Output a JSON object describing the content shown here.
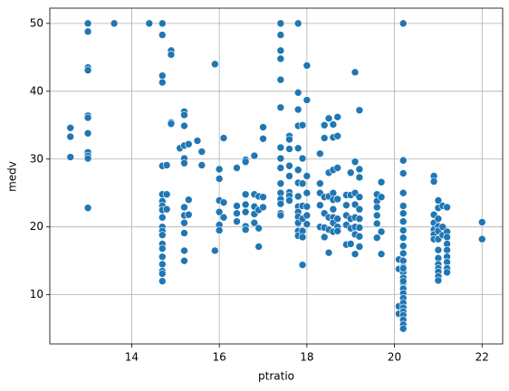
{
  "chart_data": {
    "type": "scatter",
    "xlabel": "ptratio",
    "ylabel": "medv",
    "color": "#1f77b4",
    "grid": true,
    "xlim": [
      12.13,
      22.47
    ],
    "ylim": [
      2.75,
      52.25
    ],
    "xticks": [
      14,
      16,
      18,
      20,
      22
    ],
    "yticks": [
      10,
      20,
      30,
      40,
      50
    ],
    "x": [
      12.6,
      12.6,
      12.6,
      13.0,
      13.0,
      13.0,
      13.0,
      13.0,
      13.0,
      13.0,
      13.0,
      13.0,
      13.0,
      13.0,
      13.6,
      14.4,
      14.7,
      14.7,
      14.7,
      14.7,
      14.7,
      14.7,
      14.7,
      14.7,
      14.7,
      14.7,
      14.7,
      14.7,
      14.7,
      14.7,
      14.7,
      14.7,
      14.7,
      14.7,
      14.7,
      14.7,
      14.8,
      14.8,
      14.8,
      14.9,
      14.9,
      14.9,
      14.9,
      15.1,
      15.2,
      15.2,
      15.2,
      15.2,
      15.2,
      15.2,
      15.2,
      15.2,
      15.2,
      15.2,
      15.2,
      15.2,
      15.3,
      15.3,
      15.3,
      15.5,
      15.6,
      15.6,
      15.9,
      15.9,
      16.0,
      16.0,
      16.0,
      16.0,
      16.0,
      16.0,
      16.1,
      16.1,
      16.1,
      16.4,
      16.4,
      16.4,
      16.4,
      16.6,
      16.6,
      16.6,
      16.6,
      16.6,
      16.6,
      16.6,
      16.8,
      16.8,
      16.8,
      16.8,
      16.8,
      16.9,
      16.9,
      16.9,
      16.9,
      17.0,
      17.0,
      17.0,
      17.0,
      17.4,
      17.4,
      17.4,
      17.4,
      17.4,
      17.4,
      17.4,
      17.4,
      17.4,
      17.4,
      17.4,
      17.4,
      17.4,
      17.4,
      17.4,
      17.6,
      17.6,
      17.6,
      17.6,
      17.6,
      17.6,
      17.6,
      17.6,
      17.8,
      17.8,
      17.8,
      17.8,
      17.8,
      17.8,
      17.8,
      17.8,
      17.8,
      17.8,
      17.8,
      17.8,
      17.8,
      17.8,
      17.9,
      17.9,
      17.9,
      17.9,
      17.9,
      17.9,
      17.9,
      17.9,
      18.0,
      18.0,
      18.0,
      18.0,
      18.0,
      18.0,
      18.0,
      18.3,
      18.3,
      18.3,
      18.3,
      18.3,
      18.4,
      18.4,
      18.4,
      18.4,
      18.4,
      18.4,
      18.5,
      18.5,
      18.5,
      18.5,
      18.5,
      18.5,
      18.6,
      18.6,
      18.6,
      18.6,
      18.6,
      18.6,
      18.6,
      18.6,
      18.6,
      18.7,
      18.7,
      18.7,
      18.7,
      18.7,
      18.7,
      18.7,
      18.9,
      18.9,
      18.9,
      18.9,
      18.9,
      19.0,
      19.0,
      19.0,
      19.0,
      19.0,
      19.1,
      19.1,
      19.1,
      19.1,
      19.1,
      19.1,
      19.1,
      19.1,
      19.2,
      19.2,
      19.2,
      19.2,
      19.2,
      19.2,
      19.2,
      19.2,
      19.2,
      19.6,
      19.6,
      19.6,
      19.6,
      19.6,
      19.6,
      19.7,
      19.7,
      19.7,
      19.7,
      20.1,
      20.1,
      20.1,
      20.1,
      20.2,
      20.2,
      20.2,
      20.2,
      20.2,
      20.2,
      20.2,
      20.2,
      20.2,
      20.2,
      20.2,
      20.2,
      20.2,
      20.2,
      20.2,
      20.2,
      20.2,
      20.2,
      20.2,
      20.2,
      20.2,
      20.2,
      20.2,
      20.2,
      20.2,
      20.2,
      20.2,
      20.2,
      20.9,
      20.9,
      20.9,
      20.9,
      20.9,
      20.9,
      20.9,
      21.0,
      21.0,
      21.0,
      21.0,
      21.0,
      21.0,
      21.0,
      21.0,
      21.0,
      21.0,
      21.0,
      21.0,
      21.0,
      21.1,
      21.1,
      21.1,
      21.2,
      21.2,
      21.2,
      21.2,
      21.2,
      21.2,
      21.2,
      21.2,
      21.2,
      22.0,
      22.0
    ],
    "y": [
      34.6,
      33.3,
      30.3,
      50,
      48.8,
      43.5,
      43.1,
      36.4,
      36.1,
      33.8,
      31.0,
      30.5,
      30.1,
      22.8,
      50,
      50,
      50,
      48.3,
      42.3,
      41.3,
      29.0,
      24.8,
      23.8,
      23.1,
      22.5,
      21.4,
      20.0,
      19.4,
      18.8,
      17.5,
      16.8,
      15.6,
      14.5,
      13.5,
      13.1,
      12.0,
      29.1,
      24.8,
      22.6,
      46.0,
      45.4,
      35.4,
      35.2,
      31.6,
      37.0,
      36.5,
      34.9,
      32.0,
      30.1,
      29.4,
      22.9,
      21.7,
      20.6,
      19.1,
      16.5,
      15.0,
      32.2,
      24.0,
      21.8,
      32.7,
      31.1,
      29.1,
      44.0,
      16.5,
      28.5,
      27.1,
      23.9,
      22.2,
      20.3,
      19.5,
      33.1,
      23.6,
      21.4,
      28.7,
      23.1,
      22.0,
      20.8,
      29.9,
      29.6,
      24.8,
      23.3,
      22.2,
      20.1,
      19.6,
      30.5,
      24.8,
      23.0,
      21.9,
      20.6,
      24.5,
      22.5,
      19.8,
      17.1,
      34.7,
      33.0,
      24.4,
      22.9,
      50,
      48.3,
      46.0,
      44.8,
      41.7,
      37.6,
      31.7,
      30.1,
      28.7,
      26.4,
      25.0,
      24.1,
      23.4,
      22.0,
      21.7,
      33.4,
      32.9,
      31.5,
      29.0,
      27.5,
      25.1,
      24.6,
      23.9,
      50,
      39.8,
      37.3,
      34.9,
      31.6,
      28.4,
      26.5,
      24.5,
      23.0,
      22.2,
      21.5,
      20.6,
      19.4,
      18.7,
      35.0,
      30.1,
      26.4,
      23.1,
      21.2,
      19.4,
      18.5,
      14.4,
      43.8,
      38.7,
      27.5,
      25.0,
      23.0,
      21.7,
      20.4,
      30.8,
      26.4,
      25.0,
      23.2,
      20.0,
      35.0,
      33.1,
      24.4,
      22.0,
      19.9,
      18.5,
      36.0,
      28.0,
      24.5,
      21.4,
      19.6,
      16.2,
      35.1,
      33.2,
      28.4,
      25.0,
      24.0,
      22.6,
      21.4,
      20.6,
      19.3,
      36.2,
      33.4,
      28.7,
      24.1,
      21.2,
      20.0,
      19.4,
      24.7,
      23.2,
      21.7,
      20.3,
      17.4,
      28.0,
      24.7,
      21.2,
      19.8,
      17.5,
      42.8,
      29.6,
      25.0,
      23.3,
      21.4,
      20.0,
      18.9,
      16.0,
      37.2,
      28.5,
      27.3,
      24.4,
      22.6,
      21.2,
      19.9,
      18.6,
      17.1,
      24.8,
      23.8,
      22.9,
      21.7,
      20.5,
      18.4,
      26.6,
      24.4,
      19.3,
      16.0,
      15.2,
      13.8,
      8.3,
      7.2,
      50,
      29.8,
      27.9,
      25.0,
      23.1,
      22.0,
      20.8,
      19.5,
      18.4,
      17.2,
      16.1,
      15.0,
      14.1,
      13.3,
      12.5,
      11.7,
      10.9,
      10.2,
      9.5,
      8.8,
      8.1,
      7.5,
      7.0,
      6.3,
      5.6,
      5.0,
      13.9,
      12.0,
      27.5,
      26.7,
      21.8,
      20.6,
      19.6,
      18.9,
      18.2,
      23.9,
      22.8,
      21.2,
      20.1,
      19.4,
      18.2,
      16.6,
      15.4,
      14.5,
      13.9,
      13.4,
      12.7,
      12.1,
      23.1,
      20.0,
      18.8,
      22.9,
      19.3,
      18.5,
      17.5,
      16.6,
      15.6,
      14.8,
      13.9,
      13.3,
      20.7,
      18.2
    ]
  }
}
